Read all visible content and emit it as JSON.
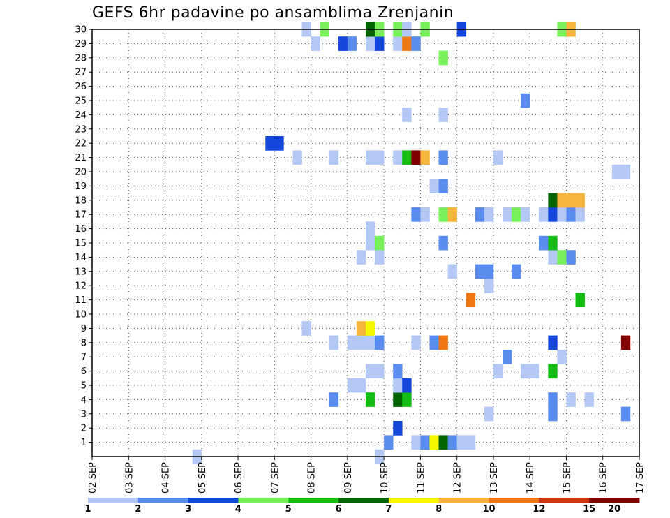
{
  "chart_data": {
    "type": "heatmap",
    "title": "GEFS 6hr padavine po ansamblima Zrenjanin",
    "xlabel": "",
    "ylabel": "",
    "x_tick_labels": [
      "02 SEP",
      "03 SEP",
      "04 SEP",
      "05 SEP",
      "06 SEP",
      "07 SEP",
      "08 SEP",
      "09 SEP",
      "10 SEP",
      "11 SEP",
      "12 SEP",
      "13 SEP",
      "14 SEP",
      "15 SEP",
      "16 SEP",
      "17 SEP"
    ],
    "y_tick_labels": [
      "1",
      "2",
      "3",
      "4",
      "5",
      "6",
      "7",
      "8",
      "9",
      "10",
      "11",
      "12",
      "13",
      "14",
      "15",
      "16",
      "17",
      "18",
      "19",
      "20",
      "21",
      "22",
      "23",
      "24",
      "25",
      "26",
      "27",
      "28",
      "29",
      "30"
    ],
    "x_unit": "6-hour steps from 02 SEP",
    "xlim": [
      0,
      60
    ],
    "ylim": [
      0,
      30
    ],
    "grid": true,
    "legend_position": "bottom",
    "colorbar": {
      "tick_labels": [
        "1",
        "2",
        "3",
        "4",
        "5",
        "6",
        "7",
        "8",
        "10",
        "12",
        "15",
        "20"
      ],
      "colors": [
        "#b4c8f5",
        "#5a8cf0",
        "#1446dc",
        "#78f05a",
        "#14be14",
        "#006400",
        "#f5f500",
        "#f5b43c",
        "#f07814",
        "#d23214",
        "#820000"
      ]
    },
    "cells": [
      [
        12,
        0,
        0
      ],
      [
        32,
        0,
        0
      ],
      [
        33,
        1,
        1
      ],
      [
        36,
        1,
        0
      ],
      [
        37,
        1,
        1
      ],
      [
        38,
        1,
        6
      ],
      [
        39,
        1,
        5
      ],
      [
        40,
        1,
        1
      ],
      [
        41,
        1,
        0
      ],
      [
        42,
        1,
        0
      ],
      [
        34,
        2,
        2
      ],
      [
        44,
        3,
        0
      ],
      [
        51,
        3,
        1
      ],
      [
        59,
        3,
        1
      ],
      [
        27,
        4,
        1
      ],
      [
        31,
        4,
        4
      ],
      [
        34,
        4,
        5
      ],
      [
        35,
        4,
        4
      ],
      [
        51,
        4,
        1
      ],
      [
        53,
        4,
        0
      ],
      [
        55,
        4,
        0
      ],
      [
        29,
        5,
        0
      ],
      [
        30,
        5,
        0
      ],
      [
        34,
        5,
        0
      ],
      [
        35,
        5,
        2
      ],
      [
        31,
        6,
        0
      ],
      [
        32,
        6,
        0
      ],
      [
        34,
        6,
        1
      ],
      [
        45,
        6,
        0
      ],
      [
        48,
        6,
        0
      ],
      [
        49,
        6,
        0
      ],
      [
        51,
        6,
        4
      ],
      [
        46,
        7,
        1
      ],
      [
        52,
        7,
        0
      ],
      [
        27,
        8,
        0
      ],
      [
        29,
        8,
        0
      ],
      [
        30,
        8,
        0
      ],
      [
        31,
        8,
        0
      ],
      [
        32,
        8,
        1
      ],
      [
        36,
        8,
        0
      ],
      [
        38,
        8,
        1
      ],
      [
        39,
        8,
        8
      ],
      [
        51,
        8,
        2
      ],
      [
        59,
        8,
        10
      ],
      [
        24,
        9,
        0
      ],
      [
        30,
        9,
        7
      ],
      [
        31,
        9,
        6
      ],
      [
        42,
        11,
        8
      ],
      [
        54,
        11,
        4
      ],
      [
        44,
        12,
        0
      ],
      [
        40,
        13,
        0
      ],
      [
        43,
        13,
        1
      ],
      [
        44,
        13,
        1
      ],
      [
        47,
        13,
        1
      ],
      [
        30,
        14,
        0
      ],
      [
        32,
        14,
        0
      ],
      [
        51,
        14,
        0
      ],
      [
        52,
        14,
        3
      ],
      [
        53,
        14,
        1
      ],
      [
        31,
        15,
        0
      ],
      [
        32,
        15,
        3
      ],
      [
        39,
        15,
        1
      ],
      [
        50,
        15,
        1
      ],
      [
        51,
        15,
        4
      ],
      [
        31,
        16,
        0
      ],
      [
        36,
        17,
        1
      ],
      [
        37,
        17,
        0
      ],
      [
        39,
        17,
        3
      ],
      [
        40,
        17,
        7
      ],
      [
        43,
        17,
        1
      ],
      [
        44,
        17,
        0
      ],
      [
        46,
        17,
        0
      ],
      [
        47,
        17,
        3
      ],
      [
        48,
        17,
        0
      ],
      [
        50,
        17,
        0
      ],
      [
        51,
        17,
        2
      ],
      [
        52,
        17,
        0
      ],
      [
        53,
        17,
        1
      ],
      [
        54,
        17,
        0
      ],
      [
        51,
        18,
        5
      ],
      [
        52,
        18,
        7
      ],
      [
        53,
        18,
        7
      ],
      [
        54,
        18,
        7
      ],
      [
        38,
        19,
        0
      ],
      [
        39,
        19,
        1
      ],
      [
        58,
        20,
        0
      ],
      [
        59,
        20,
        0
      ],
      [
        23,
        21,
        0
      ],
      [
        27,
        21,
        0
      ],
      [
        31,
        21,
        0
      ],
      [
        32,
        21,
        0
      ],
      [
        34,
        21,
        0
      ],
      [
        35,
        21,
        4
      ],
      [
        36,
        21,
        10
      ],
      [
        37,
        21,
        7
      ],
      [
        39,
        21,
        1
      ],
      [
        45,
        21,
        0
      ],
      [
        20,
        22,
        2
      ],
      [
        21,
        22,
        2
      ],
      [
        35,
        24,
        0
      ],
      [
        39,
        24,
        0
      ],
      [
        48,
        25,
        1
      ],
      [
        39,
        28,
        3
      ],
      [
        25,
        29,
        0
      ],
      [
        28,
        29,
        2
      ],
      [
        29,
        29,
        1
      ],
      [
        31,
        29,
        0
      ],
      [
        32,
        29,
        2
      ],
      [
        34,
        29,
        0
      ],
      [
        35,
        29,
        8
      ],
      [
        36,
        29,
        1
      ],
      [
        24,
        30,
        0
      ],
      [
        26,
        30,
        3
      ],
      [
        31,
        30,
        5
      ],
      [
        32,
        30,
        3
      ],
      [
        34,
        30,
        3
      ],
      [
        35,
        30,
        0
      ],
      [
        37,
        30,
        3
      ],
      [
        41,
        30,
        2
      ],
      [
        52,
        30,
        3
      ],
      [
        53,
        30,
        7
      ]
    ]
  }
}
